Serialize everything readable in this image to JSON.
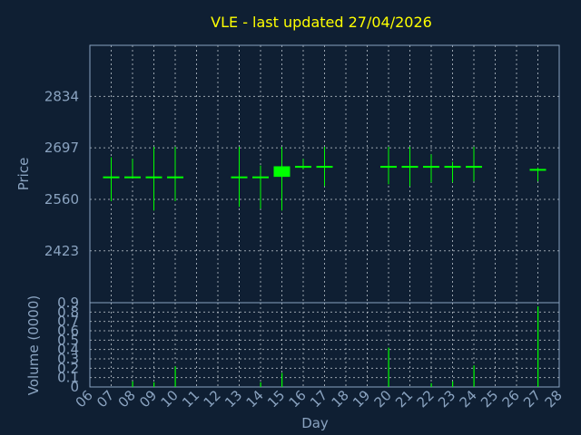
{
  "title": "VLE - last updated 27/04/2026",
  "chart_data": [
    {
      "type": "candlestick",
      "ylabel": "Price",
      "ylim": [
        2285,
        2970
      ],
      "yticks": [
        2423,
        2560,
        2697,
        2834
      ],
      "x_range": [
        6,
        28
      ],
      "grid": true,
      "up_color": "#00ff00",
      "candles": [
        {
          "day": 7,
          "open": 2620,
          "high": 2672,
          "low": 2555,
          "close": 2621
        },
        {
          "day": 8,
          "open": 2620,
          "high": 2668,
          "low": 2618,
          "close": 2621
        },
        {
          "day": 9,
          "open": 2620,
          "high": 2700,
          "low": 2530,
          "close": 2621
        },
        {
          "day": 10,
          "open": 2620,
          "high": 2700,
          "low": 2555,
          "close": 2621
        },
        {
          "day": 13,
          "open": 2620,
          "high": 2700,
          "low": 2540,
          "close": 2621
        },
        {
          "day": 14,
          "open": 2620,
          "high": 2650,
          "low": 2535,
          "close": 2621
        },
        {
          "day": 15,
          "open": 2620,
          "high": 2700,
          "low": 2530,
          "close": 2648
        },
        {
          "day": 16,
          "open": 2648,
          "high": 2668,
          "low": 2640,
          "close": 2649
        },
        {
          "day": 17,
          "open": 2648,
          "high": 2700,
          "low": 2595,
          "close": 2649
        },
        {
          "day": 20,
          "open": 2648,
          "high": 2700,
          "low": 2600,
          "close": 2649
        },
        {
          "day": 21,
          "open": 2648,
          "high": 2700,
          "low": 2595,
          "close": 2649
        },
        {
          "day": 22,
          "open": 2648,
          "high": 2680,
          "low": 2605,
          "close": 2649
        },
        {
          "day": 23,
          "open": 2648,
          "high": 2660,
          "low": 2605,
          "close": 2649
        },
        {
          "day": 24,
          "open": 2648,
          "high": 2700,
          "low": 2608,
          "close": 2649
        },
        {
          "day": 27,
          "open": 2640,
          "high": 2645,
          "low": 2608,
          "close": 2641
        }
      ]
    },
    {
      "type": "bar",
      "ylabel": "Volume (0000)",
      "xlabel": "Day",
      "ylim": [
        0,
        0.9
      ],
      "yticks": [
        "0",
        "0.1",
        "0.2",
        "0.3",
        "0.4",
        "0.5",
        "0.6",
        "0.7",
        "0.8",
        "0.9"
      ],
      "xticks": [
        "06",
        "07",
        "08",
        "09",
        "10",
        "11",
        "12",
        "13",
        "14",
        "15",
        "16",
        "17",
        "18",
        "19",
        "20",
        "21",
        "22",
        "23",
        "24",
        "25",
        "26",
        "27",
        "28"
      ],
      "bar_color": "#00ff00",
      "bars": [
        {
          "day": 8,
          "value": 0.06
        },
        {
          "day": 9,
          "value": 0.05
        },
        {
          "day": 10,
          "value": 0.22
        },
        {
          "day": 14,
          "value": 0.05
        },
        {
          "day": 15,
          "value": 0.15
        },
        {
          "day": 20,
          "value": 0.42
        },
        {
          "day": 22,
          "value": 0.04
        },
        {
          "day": 23,
          "value": 0.06
        },
        {
          "day": 24,
          "value": 0.23
        },
        {
          "day": 27,
          "value": 0.86
        }
      ]
    }
  ]
}
